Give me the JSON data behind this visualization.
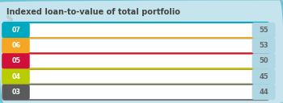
{
  "title": "Indexed loan-to-value of total portfolio",
  "subtitle": "%",
  "background_color": "#c5e4ed",
  "bars": [
    {
      "label": "07",
      "value": 55,
      "bar_color": "#00a8c0",
      "label_bg": "#00a8c0",
      "label_color": "#ffffff",
      "value_color": "#666666"
    },
    {
      "label": "06",
      "value": 53,
      "bar_color": "#f5a623",
      "label_bg": "#f5a623",
      "label_color": "#ffffff",
      "value_color": "#666666"
    },
    {
      "label": "05",
      "value": 50,
      "bar_color": "#d0103a",
      "label_bg": "#d0103a",
      "label_color": "#ffffff",
      "value_color": "#666666"
    },
    {
      "label": "04",
      "value": 45,
      "bar_color": "#b8cc00",
      "label_bg": "#b8cc00",
      "label_color": "#ffffff",
      "value_color": "#666666"
    },
    {
      "label": "03",
      "value": 44,
      "bar_color": "#7a7a7a",
      "label_bg": "#5a5a5a",
      "label_color": "#ffffff",
      "value_color": "#666666"
    }
  ],
  "max_value": 57,
  "track_color": "#ffffff",
  "track_alpha": 1.0,
  "end_cap_color": "#aed6e3",
  "border_color": "#6cc5d4",
  "title_color": "#444444",
  "subtitle_color": "#aaaaaa"
}
